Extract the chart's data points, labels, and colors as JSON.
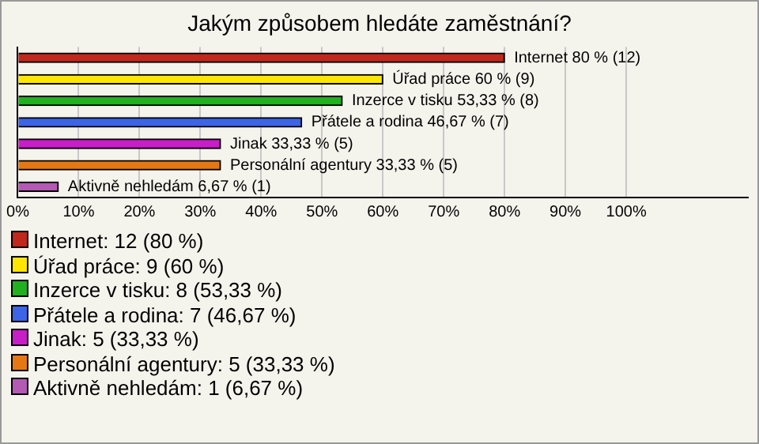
{
  "chart_data": {
    "type": "bar",
    "orientation": "horizontal",
    "title": "Jakým způsobem hledáte zaměstnání?",
    "categories": [
      null,
      null,
      null,
      null,
      null,
      null,
      null
    ],
    "values": [
      80,
      60,
      53.33,
      46.67,
      33.33,
      33.33,
      6.67
    ],
    "colors": [
      "#c0281c",
      "#ffe600",
      "#20b020",
      "#3c64e6",
      "#c81ec8",
      "#e67814",
      "#b45ab4"
    ],
    "value_labels": [
      "Internet 80 % (12)",
      "Úřad práce 60 % (9)",
      "Inzerce v tisku 53,33 % (8)",
      "Přátele a rodina 46,67 % (7)",
      "Jinak 33,33 % (5)",
      "Personální agentury 33,33 % (5)",
      "Aktivně nehledám 6,67 % (1)"
    ],
    "xlim": [
      0,
      120
    ],
    "xticks": [
      {
        "value": 0,
        "label": "0%"
      },
      {
        "value": 10,
        "label": "10%"
      },
      {
        "value": 20,
        "label": "20%"
      },
      {
        "value": 30,
        "label": "30%"
      },
      {
        "value": 40,
        "label": "40%"
      },
      {
        "value": 50,
        "label": "50%"
      },
      {
        "value": 60,
        "label": "60%"
      },
      {
        "value": 70,
        "label": "70%"
      },
      {
        "value": 80,
        "label": "80%"
      },
      {
        "value": 90,
        "label": "90%"
      },
      {
        "value": 100,
        "label": "100%"
      }
    ],
    "grid": "x",
    "annotations": [
      "Internet: 12 (80 %)",
      "Úřad práce: 9 (60 %)",
      "Inzerce v tisku: 8 (53,33 %)",
      "Přátele a rodina: 7 (46,67 %)",
      "Jinak: 5 (33,33 %)",
      "Personální agentury: 5 (33,33 %)",
      "Aktivně nehledám: 1 (6,67 %)"
    ]
  }
}
